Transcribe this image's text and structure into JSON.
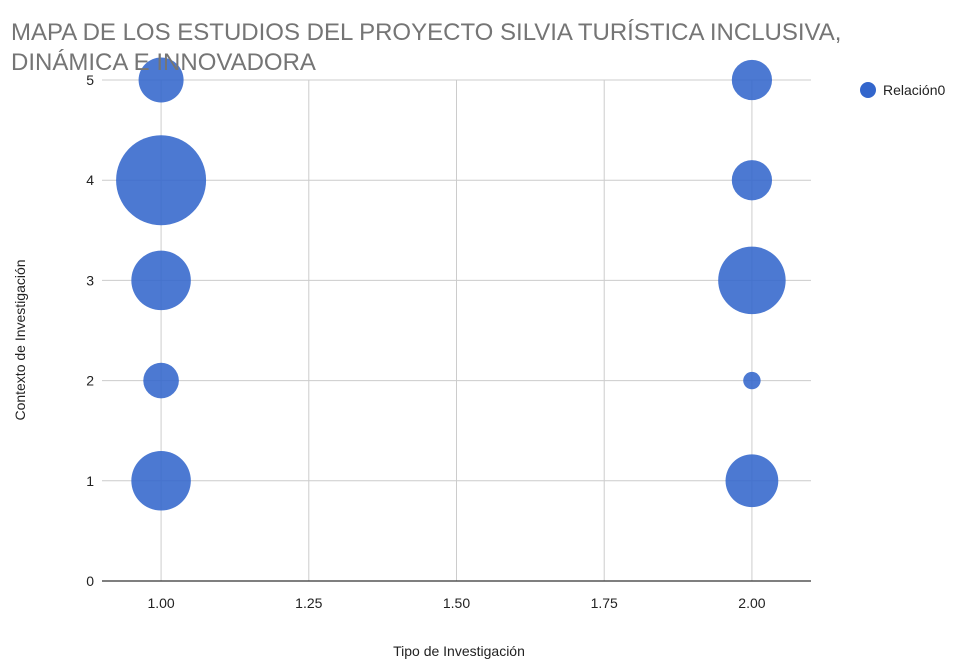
{
  "chart_data": {
    "type": "scatter",
    "title_lines": [
      "MAPA DE LOS  ESTUDIOS DEL PROYECTO SILVIA TURÍSTICA INCLUSIVA,",
      "DINÁMICA E INNOVADORA"
    ],
    "xlabel": "Tipo de Investigación",
    "ylabel": "Contexto de Investigación",
    "xlim": [
      0.9,
      2.1
    ],
    "ylim": [
      0,
      5
    ],
    "x_ticks": [
      1.0,
      1.25,
      1.5,
      1.75,
      2.0
    ],
    "x_tick_labels": [
      "1.00",
      "1.25",
      "1.50",
      "1.75",
      "2.00"
    ],
    "y_ticks": [
      0,
      1,
      2,
      3,
      4,
      5
    ],
    "y_tick_labels": [
      "0",
      "1",
      "2",
      "3",
      "4",
      "5"
    ],
    "grid": true,
    "legend_position": "right",
    "color": "#3366cc",
    "series": [
      {
        "name": "Relación0",
        "points": [
          {
            "x": 1,
            "y": 5,
            "size": 4
          },
          {
            "x": 1,
            "y": 4,
            "size": 16
          },
          {
            "x": 1,
            "y": 3,
            "size": 7
          },
          {
            "x": 1,
            "y": 2,
            "size": 2.5
          },
          {
            "x": 1,
            "y": 1,
            "size": 7
          },
          {
            "x": 2,
            "y": 5,
            "size": 3.2
          },
          {
            "x": 2,
            "y": 4,
            "size": 3.2
          },
          {
            "x": 2,
            "y": 3,
            "size": 9
          },
          {
            "x": 2,
            "y": 2,
            "size": 0.6
          },
          {
            "x": 2,
            "y": 1,
            "size": 5.5
          }
        ]
      }
    ]
  }
}
